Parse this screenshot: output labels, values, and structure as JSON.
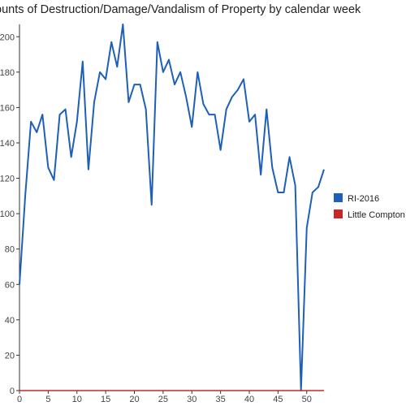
{
  "chart_data": {
    "type": "line",
    "title": "ounts of Destruction/Damage/Vandalism of Property by calendar week",
    "xlabel": "",
    "ylabel": "",
    "xlim": [
      0,
      53
    ],
    "ylim": [
      0,
      207
    ],
    "x_ticks": [
      0,
      5,
      10,
      15,
      20,
      25,
      30,
      35,
      40,
      45,
      50
    ],
    "y_ticks": [
      0,
      20,
      40,
      60,
      80,
      100,
      120,
      140,
      160,
      180,
      200
    ],
    "grid": false,
    "legend_position": "right",
    "x": [
      0,
      1,
      2,
      3,
      4,
      5,
      6,
      7,
      8,
      9,
      10,
      11,
      12,
      13,
      14,
      15,
      16,
      17,
      18,
      19,
      20,
      21,
      22,
      23,
      24,
      25,
      26,
      27,
      28,
      29,
      30,
      31,
      32,
      33,
      34,
      35,
      36,
      37,
      38,
      39,
      40,
      41,
      42,
      43,
      44,
      45,
      46,
      47,
      48,
      49,
      50,
      51,
      52,
      53
    ],
    "series": [
      {
        "name": "RI-2016",
        "color": "#1e5fb8",
        "values": [
          60,
          110,
          152,
          146,
          156,
          126,
          119,
          156,
          159,
          132,
          152,
          186,
          125,
          163,
          180,
          176,
          197,
          183,
          207,
          163,
          173,
          173,
          159,
          105,
          197,
          180,
          187,
          173,
          180,
          166,
          149,
          180,
          162,
          156,
          156,
          136,
          159,
          166,
          170,
          176,
          152,
          156,
          122,
          159,
          126,
          112,
          112,
          132,
          116,
          0,
          92,
          112,
          115,
          125
        ]
      },
      {
        "name": "Little Compton",
        "color": "#c62828",
        "values": [
          0,
          0,
          0,
          0,
          0,
          0,
          0,
          0,
          0,
          0,
          0,
          0,
          0,
          0,
          0,
          0,
          0,
          0,
          0,
          0,
          0,
          0,
          0,
          0,
          0,
          0,
          0,
          0,
          0,
          0,
          0,
          0,
          0,
          0,
          0,
          0,
          0,
          0,
          0,
          0,
          0,
          0,
          0,
          0,
          0,
          0,
          0,
          0,
          0,
          0,
          0,
          0,
          0,
          0
        ]
      }
    ]
  }
}
